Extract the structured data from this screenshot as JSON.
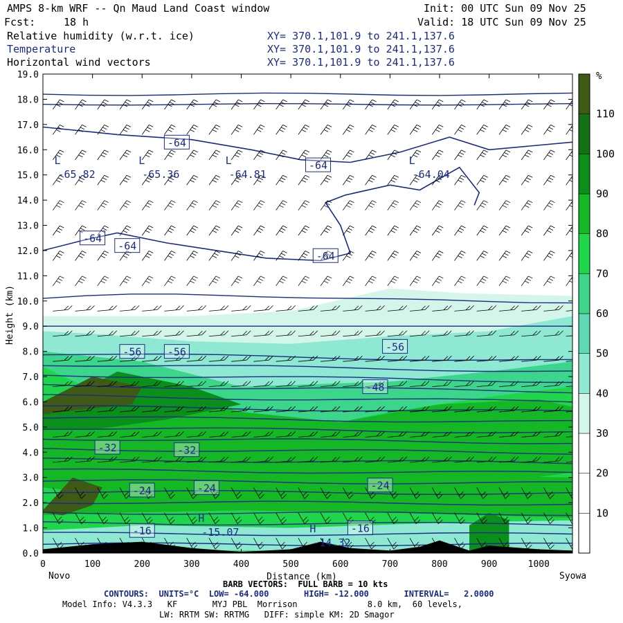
{
  "header": {
    "title": "AMPS 8-km WRF -- Qn Maud Land Coast window",
    "init": "Init: 00 UTC Sun 09 Nov 25",
    "fcst_label": "Fcst:",
    "fcst_value": "18 h",
    "valid": "Valid: 18 UTC Sun 09 Nov 25",
    "fields": [
      {
        "name": "Relative humidity (w.r.t. ice)",
        "xy": "XY= 370.1,101.9 to 241.1,137.6"
      },
      {
        "name": "Temperature",
        "xy": "XY= 370.1,101.9 to 241.1,137.6"
      },
      {
        "name": "Horizontal wind vectors",
        "xy": "XY= 370.1,101.9 to 241.1,137.6"
      }
    ]
  },
  "colors": {
    "contour": "#1a2a8a",
    "rh_scale": [
      "#ffffff",
      "#ffffff",
      "#ffffff",
      "#d4f5ea",
      "#8ee8d2",
      "#5fd9b4",
      "#3bd68a",
      "#1fd64a",
      "#13b824",
      "#0a8f1a",
      "#147014",
      "#3f5a14",
      "#c8300c"
    ]
  },
  "chart_data": {
    "type": "heatmap",
    "ylabel": "Height (km)",
    "xlabel": "Distance (km)",
    "xlim": [
      0,
      1068
    ],
    "ylim": [
      0,
      19
    ],
    "x_ticks": [
      "0",
      "100",
      "200",
      "300",
      "400",
      "500",
      "600",
      "700",
      "800",
      "900",
      "1000"
    ],
    "y_ticks": [
      "0.0",
      "1.0",
      "2.0",
      "3.0",
      "4.0",
      "5.0",
      "6.0",
      "7.0",
      "8.0",
      "9.0",
      "10.0",
      "11.0",
      "12.0",
      "13.0",
      "14.0",
      "15.0",
      "16.0",
      "17.0",
      "18.0",
      "19.0"
    ],
    "endpoints": {
      "left": "Novo",
      "right": "Syowa"
    },
    "colorbar": {
      "unit": "%",
      "ticks": [
        "10",
        "20",
        "30",
        "40",
        "50",
        "60",
        "70",
        "80",
        "90",
        "100",
        "110"
      ],
      "bounds": [
        0,
        10,
        20,
        30,
        40,
        50,
        60,
        70,
        80,
        90,
        100,
        110,
        120
      ]
    },
    "temperature_labels": [
      {
        "text": "-64",
        "x": 270,
        "y": 16.3
      },
      {
        "text": "-64",
        "x": 555,
        "y": 15.4
      },
      {
        "text": "-64",
        "x": 100,
        "y": 12.5
      },
      {
        "text": "-64",
        "x": 170,
        "y": 12.2
      },
      {
        "text": "-64",
        "x": 570,
        "y": 11.8
      },
      {
        "text": "-56",
        "x": 180,
        "y": 8.0
      },
      {
        "text": "-56",
        "x": 270,
        "y": 8.0
      },
      {
        "text": "-56",
        "x": 710,
        "y": 8.2
      },
      {
        "text": "-48",
        "x": 670,
        "y": 6.6
      },
      {
        "text": "-32",
        "x": 130,
        "y": 4.2
      },
      {
        "text": "-32",
        "x": 290,
        "y": 4.1
      },
      {
        "text": "-24",
        "x": 200,
        "y": 2.5
      },
      {
        "text": "-24",
        "x": 330,
        "y": 2.6
      },
      {
        "text": "-24",
        "x": 680,
        "y": 2.7
      },
      {
        "text": "-16",
        "x": 640,
        "y": 1.0
      },
      {
        "text": "-16",
        "x": 200,
        "y": 0.9
      }
    ],
    "lows": [
      {
        "text": "L",
        "value": "-65.82",
        "x": 30,
        "y": 15.1
      },
      {
        "text": "L",
        "value": "-65.36",
        "x": 200,
        "y": 15.1
      },
      {
        "text": "L",
        "value": "-64.81",
        "x": 375,
        "y": 15.1
      },
      {
        "text": "L",
        "value": "-64.04",
        "x": 745,
        "y": 15.1
      }
    ],
    "highs": [
      {
        "text": "H",
        "value": "-15.07",
        "x": 320,
        "y": 0.9
      },
      {
        "text": "H",
        "value": "-14.32",
        "x": 545,
        "y": 0.5
      }
    ]
  },
  "footer": {
    "barb": "BARB VECTORS:  FULL BARB = 10 kts",
    "contours": "CONTOURS:  UNITS=°C  LOW= -64.000       HIGH= -12.000       INTERVAL=   2.0000",
    "model": "Model Info: V4.3.3   KF       MYJ PBL  Morrison              8.0 km,  60 levels,",
    "physics": "LW: RRTM SW: RRTMG   DIFF: simple KM: 2D Smagor"
  }
}
